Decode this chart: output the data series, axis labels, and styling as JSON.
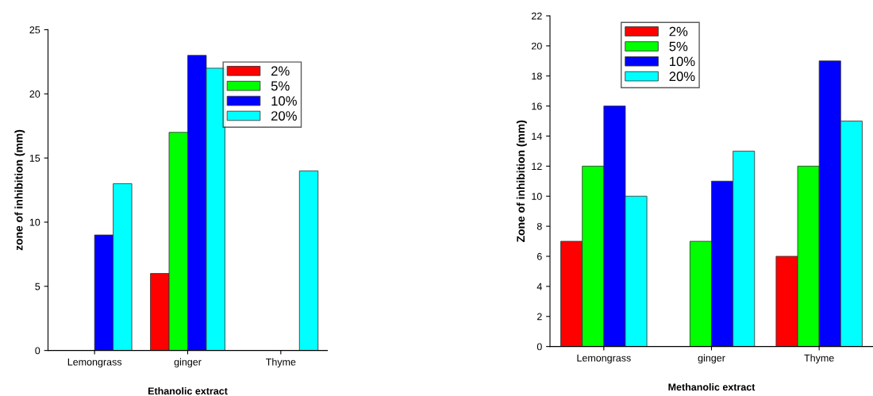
{
  "chart_data": [
    {
      "type": "bar",
      "xlabel": "Ethanolic extract",
      "ylabel": "zone of inhibition (mm)",
      "categories": [
        "Lemongrass",
        "ginger",
        "Thyme"
      ],
      "series": [
        {
          "name": "2%",
          "color": "#ff0000",
          "values": [
            null,
            6,
            null
          ]
        },
        {
          "name": "5%",
          "color": "#00ff00",
          "values": [
            null,
            17,
            null
          ]
        },
        {
          "name": "10%",
          "color": "#0000ff",
          "values": [
            9,
            23,
            null
          ]
        },
        {
          "name": "20%",
          "color": "#00ffff",
          "values": [
            13,
            22,
            14
          ]
        }
      ],
      "ylim": [
        0,
        25
      ],
      "yticks": [
        0,
        5,
        10,
        15,
        20,
        25
      ],
      "legend": "top right",
      "grid": false
    },
    {
      "type": "bar",
      "xlabel": "Methanolic extract",
      "ylabel": "Zone of inhibition (mm)",
      "categories": [
        "Lemongrass",
        "ginger",
        "Thyme"
      ],
      "series": [
        {
          "name": "2%",
          "color": "#ff0000",
          "values": [
            7,
            null,
            6
          ]
        },
        {
          "name": "5%",
          "color": "#00ff00",
          "values": [
            12,
            7,
            12
          ]
        },
        {
          "name": "10%",
          "color": "#0000ff",
          "values": [
            16,
            11,
            19
          ]
        },
        {
          "name": "20%",
          "color": "#00ffff",
          "values": [
            10,
            13,
            15
          ]
        }
      ],
      "ylim": [
        0,
        22
      ],
      "yticks": [
        0,
        2,
        4,
        6,
        8,
        10,
        12,
        14,
        16,
        18,
        20,
        22
      ],
      "legend": "top left",
      "grid": false
    }
  ]
}
